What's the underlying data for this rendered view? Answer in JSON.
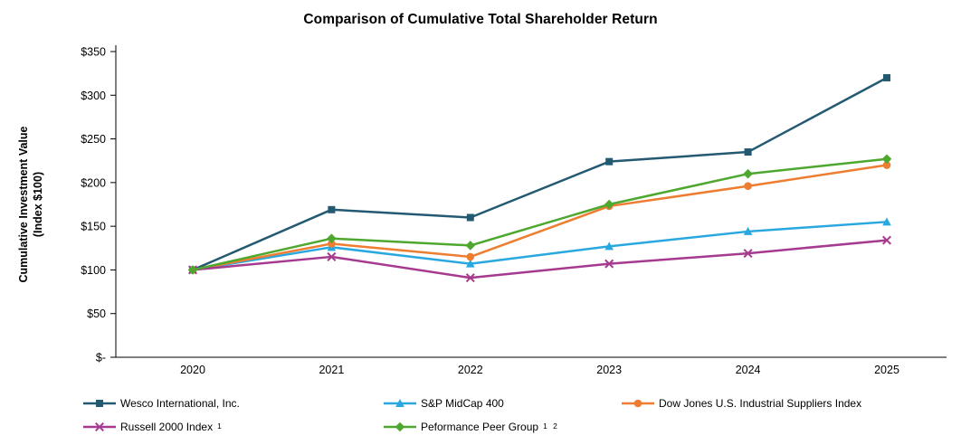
{
  "chart_data": {
    "type": "line",
    "title": "Comparison of Cumulative Total Shareholder Return",
    "ylabel": "Cumulative Investment Value (Index $100)",
    "ylabel_lines": [
      "Cumulative Investment Value",
      "(Index $100)"
    ],
    "xlabel": "",
    "categories": [
      "2020",
      "2021",
      "2022",
      "2023",
      "2024",
      "2025"
    ],
    "ylim": [
      0,
      350
    ],
    "ytick_step": 50,
    "ytick_labels": [
      "$-",
      "$50",
      "$100",
      "$150",
      "$200",
      "$250",
      "$300",
      "$350"
    ],
    "grid": false,
    "legend_position": "bottom",
    "series": [
      {
        "name": "Wesco International, Inc.",
        "values": [
          100,
          169,
          160,
          224,
          235,
          320
        ],
        "color": "#235A72",
        "marker": "square"
      },
      {
        "name": "S&P MidCap 400",
        "values": [
          100,
          126,
          107,
          127,
          144,
          155
        ],
        "color": "#29A8E0",
        "marker": "triangle"
      },
      {
        "name": "Dow Jones U.S. Industrial Suppliers Index",
        "values": [
          100,
          130,
          115,
          173,
          196,
          220
        ],
        "color": "#ED7D31",
        "marker": "circle"
      },
      {
        "name": "Russell 2000 Index",
        "superscript": "1",
        "values": [
          100,
          115,
          91,
          107,
          119,
          134
        ],
        "color": "#A63A8F",
        "marker": "x"
      },
      {
        "name": "Peformance Peer Group",
        "superscript": "1 2",
        "values": [
          100,
          136,
          128,
          175,
          210,
          227
        ],
        "color": "#4EA72E",
        "marker": "diamond"
      }
    ]
  }
}
